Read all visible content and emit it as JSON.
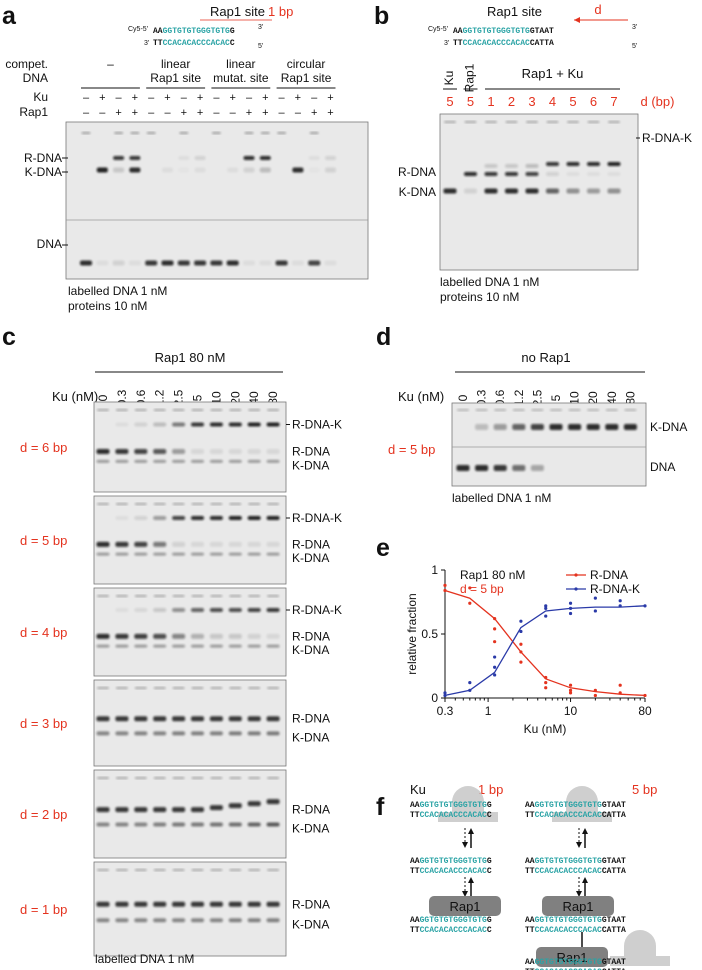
{
  "panel_labels": {
    "a": "a",
    "b": "b",
    "c": "c",
    "d": "d",
    "e": "e",
    "f": "f"
  },
  "a": {
    "site_title": "Rap1 site",
    "site_bp": "1 bp",
    "cy5": "Cy5-5'",
    "p5": "5'",
    "p3": "3'",
    "top_strand": {
      "AA": "AA",
      "teal": "GGTGTGTGGGTGTG",
      "end": "G"
    },
    "bot_strand": {
      "TT": "TT",
      "teal": "CCACACACCCACAC",
      "end": "C"
    },
    "compet_label": "compet.",
    "dna_label": "DNA",
    "groups": [
      "–",
      "linear",
      "linear",
      "circular"
    ],
    "groups2": [
      "",
      "Rap1 site",
      "mutat. site",
      "Rap1 site"
    ],
    "ku_label": "Ku",
    "rap1_label": "Rap1",
    "ku_row": [
      "–",
      "+",
      "–",
      "+",
      "–",
      "+",
      "–",
      "+",
      "–",
      "+",
      "–",
      "+",
      "–",
      "+",
      "–",
      "+"
    ],
    "rap1_row": [
      "–",
      "–",
      "+",
      "+",
      "–",
      "–",
      "+",
      "+",
      "–",
      "–",
      "+",
      "+",
      "–",
      "–",
      "+",
      "+"
    ],
    "band_labels": [
      "R-DNA",
      "K-DNA",
      "DNA"
    ],
    "note1": "labelled DNA 1 nM",
    "note2": "proteins 10 nM"
  },
  "b": {
    "site_title": "Rap1 site",
    "d_label": "d",
    "top_end": "GTAAT",
    "bot_end": "CATTA",
    "lanes_hdr": [
      "Ku",
      "Rap1"
    ],
    "group_hdr": "Rap1 + Ku",
    "d_values": [
      "5",
      "5",
      "1",
      "2",
      "3",
      "4",
      "5",
      "6",
      "7"
    ],
    "d_unit": "d (bp)",
    "band_labels": [
      "R-DNA-K",
      "R-DNA",
      "K-DNA"
    ],
    "note1": "labelled DNA 1 nM",
    "note2": "proteins 10 nM"
  },
  "c": {
    "header": "Rap1 80 nM",
    "ku_axis": "Ku (nM)",
    "ku_values": [
      "0",
      "0.3",
      "0.6",
      "1.2",
      "2.5",
      "5",
      "10",
      "20",
      "40",
      "80"
    ],
    "panels": [
      {
        "d": "d = 6 bp",
        "bands": [
          "R-DNA-K",
          "R-DNA",
          "K-DNA"
        ]
      },
      {
        "d": "d = 5 bp",
        "bands": [
          "R-DNA-K",
          "R-DNA",
          "K-DNA"
        ]
      },
      {
        "d": "d = 4 bp",
        "bands": [
          "R-DNA-K",
          "R-DNA",
          "K-DNA"
        ]
      },
      {
        "d": "d = 3 bp",
        "bands": [
          "R-DNA",
          "K-DNA"
        ]
      },
      {
        "d": "d = 2 bp",
        "bands": [
          "R-DNA",
          "K-DNA"
        ]
      },
      {
        "d": "d = 1 bp",
        "bands": [
          "R-DNA",
          "K-DNA"
        ]
      }
    ],
    "note": "labelled DNA 1 nM"
  },
  "d": {
    "header": "no Rap1",
    "ku_axis": "Ku (nM)",
    "ku_values": [
      "0",
      "0.3",
      "0.6",
      "1.2",
      "2.5",
      "5",
      "10",
      "20",
      "40",
      "80"
    ],
    "d_label": "d = 5 bp",
    "bands": [
      "K-DNA",
      "DNA"
    ],
    "note": "labelled DNA 1 nM"
  },
  "chart_data": {
    "type": "line",
    "title": "Rap1 80 nM",
    "subtitle": "d = 5 bp",
    "xlabel": "Ku (nM)",
    "ylabel": "relative fraction",
    "xscale": "log",
    "xlim": [
      0.3,
      80
    ],
    "ylim": [
      0,
      1
    ],
    "xticks": [
      "0.3",
      "1",
      "10",
      "80"
    ],
    "yticks": [
      "0",
      "0.5",
      "1"
    ],
    "legend_placement": "top-right",
    "x": [
      0.3,
      0.6,
      1.2,
      2.5,
      5,
      10,
      20,
      40,
      80
    ],
    "series": [
      {
        "name": "R-DNA",
        "color": "#e4331f",
        "values": [
          0.84,
          0.78,
          0.62,
          0.36,
          0.15,
          0.08,
          0.05,
          0.03,
          0.02
        ],
        "points": [
          [
            0.3,
            0.84
          ],
          [
            0.3,
            0.88
          ],
          [
            0.6,
            0.86
          ],
          [
            0.6,
            0.74
          ],
          [
            1.2,
            0.54
          ],
          [
            1.2,
            0.62
          ],
          [
            1.2,
            0.44
          ],
          [
            2.5,
            0.36
          ],
          [
            2.5,
            0.28
          ],
          [
            2.5,
            0.42
          ],
          [
            5,
            0.16
          ],
          [
            5,
            0.12
          ],
          [
            5,
            0.08
          ],
          [
            10,
            0.06
          ],
          [
            10,
            0.1
          ],
          [
            10,
            0.04
          ],
          [
            20,
            0.06
          ],
          [
            20,
            0.02
          ],
          [
            40,
            0.04
          ],
          [
            40,
            0.1
          ],
          [
            80,
            0.02
          ]
        ]
      },
      {
        "name": "R-DNA-K",
        "color": "#2a3aa8",
        "values": [
          0.02,
          0.06,
          0.2,
          0.55,
          0.68,
          0.7,
          0.71,
          0.71,
          0.72
        ],
        "points": [
          [
            0.3,
            0.02
          ],
          [
            0.3,
            0.04
          ],
          [
            0.6,
            0.12
          ],
          [
            0.6,
            0.06
          ],
          [
            1.2,
            0.18
          ],
          [
            1.2,
            0.32
          ],
          [
            1.2,
            0.24
          ],
          [
            2.5,
            0.52
          ],
          [
            2.5,
            0.6
          ],
          [
            5,
            0.64
          ],
          [
            5,
            0.7
          ],
          [
            5,
            0.72
          ],
          [
            10,
            0.66
          ],
          [
            10,
            0.74
          ],
          [
            10,
            0.7
          ],
          [
            20,
            0.78
          ],
          [
            20,
            0.68
          ],
          [
            40,
            0.72
          ],
          [
            40,
            0.76
          ],
          [
            80,
            0.72
          ]
        ]
      }
    ]
  },
  "f": {
    "ku_label": "Ku",
    "left_bp": "1 bp",
    "right_bp": "5 bp",
    "rap1": "Rap1",
    "seq_top": "AAGGTGTGTGGGTGTG",
    "seq_bot": "TTCCACACACCCACAC",
    "end_top_left": "G",
    "end_bot_left": "C",
    "end_top_right": "GTAAT",
    "end_bot_right": "CATTA"
  }
}
